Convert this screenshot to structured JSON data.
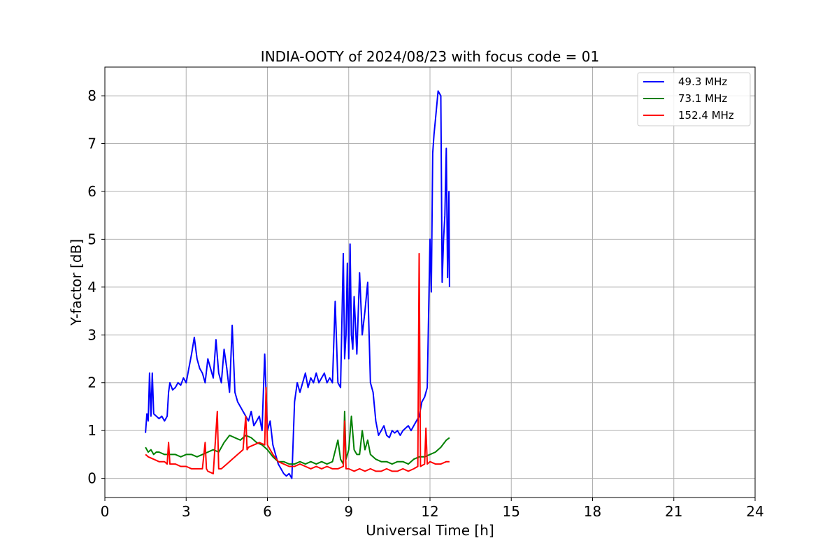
{
  "chart_data": {
    "type": "line",
    "title": "INDIA-OOTY of 2024/08/23 with focus code = 01",
    "xlabel": "Universal Time [h]",
    "ylabel": "Y-factor [dB]",
    "xlim": [
      0,
      24
    ],
    "ylim": [
      -0.4,
      8.6
    ],
    "xticks": [
      0,
      3,
      6,
      9,
      12,
      15,
      18,
      21,
      24
    ],
    "yticks": [
      0,
      1,
      2,
      3,
      4,
      5,
      6,
      7,
      8
    ],
    "grid": true,
    "legend_position": "top-right",
    "series": [
      {
        "name": " 49.3 MHz",
        "color": "#0000ff",
        "x": [
          1.5,
          1.55,
          1.6,
          1.65,
          1.7,
          1.75,
          1.8,
          1.9,
          2.0,
          2.1,
          2.2,
          2.3,
          2.35,
          2.4,
          2.5,
          2.6,
          2.7,
          2.8,
          2.9,
          3.0,
          3.1,
          3.2,
          3.3,
          3.4,
          3.5,
          3.6,
          3.7,
          3.8,
          3.9,
          4.0,
          4.1,
          4.2,
          4.3,
          4.4,
          4.5,
          4.6,
          4.7,
          4.8,
          4.9,
          5.0,
          5.1,
          5.2,
          5.3,
          5.4,
          5.5,
          5.6,
          5.7,
          5.8,
          5.9,
          6.0,
          6.1,
          6.2,
          6.3,
          6.4,
          6.5,
          6.6,
          6.7,
          6.8,
          6.9,
          7.0,
          7.1,
          7.2,
          7.3,
          7.4,
          7.5,
          7.6,
          7.7,
          7.8,
          7.9,
          8.0,
          8.1,
          8.2,
          8.3,
          8.4,
          8.5,
          8.6,
          8.7,
          8.8,
          8.85,
          8.9,
          8.95,
          9.0,
          9.05,
          9.1,
          9.15,
          9.2,
          9.3,
          9.4,
          9.5,
          9.6,
          9.7,
          9.8,
          9.9,
          10.0,
          10.1,
          10.2,
          10.3,
          10.4,
          10.5,
          10.6,
          10.7,
          10.8,
          10.9,
          11.0,
          11.1,
          11.2,
          11.3,
          11.4,
          11.5,
          11.6,
          11.7,
          11.8,
          11.9,
          12.0,
          12.05,
          12.1,
          12.15,
          12.2,
          12.3,
          12.4,
          12.45,
          12.5,
          12.55,
          12.6,
          12.65,
          12.7,
          12.72
        ],
        "y": [
          0.95,
          1.35,
          1.2,
          2.2,
          1.3,
          2.2,
          1.35,
          1.3,
          1.25,
          1.3,
          1.2,
          1.3,
          1.8,
          2.0,
          1.85,
          1.9,
          2.0,
          1.95,
          2.1,
          2.0,
          2.3,
          2.6,
          2.95,
          2.5,
          2.3,
          2.2,
          2.0,
          2.5,
          2.3,
          2.1,
          2.9,
          2.2,
          2.0,
          2.7,
          2.3,
          1.8,
          3.2,
          1.8,
          1.6,
          1.5,
          1.4,
          1.3,
          1.2,
          1.4,
          1.1,
          1.2,
          1.3,
          1.0,
          2.6,
          1.0,
          1.2,
          0.7,
          0.5,
          0.3,
          0.2,
          0.1,
          0.05,
          0.1,
          0.0,
          1.6,
          2.0,
          1.8,
          2.0,
          2.2,
          1.9,
          2.1,
          2.0,
          2.2,
          2.0,
          2.1,
          2.2,
          2.0,
          2.1,
          2.0,
          3.7,
          2.0,
          1.9,
          4.7,
          2.5,
          3.0,
          4.5,
          2.5,
          4.9,
          3.0,
          2.7,
          3.8,
          2.6,
          4.3,
          3.0,
          3.5,
          4.1,
          2.0,
          1.8,
          1.2,
          0.9,
          1.0,
          1.1,
          0.9,
          0.85,
          1.0,
          0.95,
          1.0,
          0.9,
          1.0,
          1.05,
          1.1,
          1.0,
          1.1,
          1.2,
          1.3,
          1.6,
          1.7,
          1.9,
          5.0,
          3.9,
          6.8,
          7.2,
          7.5,
          8.1,
          8.0,
          4.1,
          5.0,
          5.5,
          6.9,
          4.2,
          6.0,
          4.0
        ]
      },
      {
        "name": " 73.1 MHz",
        "color": "#008000",
        "x": [
          1.5,
          1.6,
          1.7,
          1.8,
          1.9,
          2.0,
          2.2,
          2.4,
          2.6,
          2.8,
          3.0,
          3.2,
          3.4,
          3.6,
          3.8,
          4.0,
          4.2,
          4.4,
          4.6,
          4.8,
          5.0,
          5.2,
          5.4,
          5.6,
          5.8,
          6.0,
          6.2,
          6.4,
          6.6,
          6.8,
          7.0,
          7.2,
          7.4,
          7.6,
          7.8,
          8.0,
          8.2,
          8.4,
          8.6,
          8.7,
          8.8,
          8.85,
          8.9,
          9.0,
          9.1,
          9.2,
          9.3,
          9.4,
          9.5,
          9.6,
          9.7,
          9.8,
          10.0,
          10.2,
          10.4,
          10.6,
          10.8,
          11.0,
          11.2,
          11.4,
          11.6,
          11.8,
          12.0,
          12.2,
          12.4,
          12.6,
          12.72
        ],
        "y": [
          0.65,
          0.55,
          0.6,
          0.5,
          0.55,
          0.55,
          0.5,
          0.5,
          0.5,
          0.45,
          0.5,
          0.5,
          0.45,
          0.5,
          0.55,
          0.6,
          0.55,
          0.75,
          0.9,
          0.85,
          0.8,
          0.9,
          0.85,
          0.75,
          0.7,
          0.6,
          0.45,
          0.35,
          0.35,
          0.3,
          0.3,
          0.35,
          0.3,
          0.35,
          0.3,
          0.35,
          0.3,
          0.35,
          0.8,
          0.4,
          0.3,
          1.4,
          0.4,
          0.6,
          1.3,
          0.6,
          0.5,
          0.5,
          1.0,
          0.6,
          0.8,
          0.5,
          0.4,
          0.35,
          0.35,
          0.3,
          0.35,
          0.35,
          0.3,
          0.4,
          0.45,
          0.45,
          0.5,
          0.55,
          0.65,
          0.8,
          0.85
        ]
      },
      {
        "name": "152.4 MHz",
        "color": "#ff0000",
        "x": [
          1.5,
          1.6,
          1.8,
          2.0,
          2.2,
          2.3,
          2.35,
          2.4,
          2.6,
          2.8,
          3.0,
          3.2,
          3.4,
          3.6,
          3.7,
          3.75,
          3.8,
          4.0,
          4.15,
          4.2,
          4.3,
          4.5,
          4.7,
          4.9,
          5.1,
          5.2,
          5.25,
          5.3,
          5.5,
          5.7,
          5.9,
          5.95,
          6.0,
          6.2,
          6.4,
          6.6,
          6.8,
          7.0,
          7.2,
          7.4,
          7.6,
          7.8,
          8.0,
          8.2,
          8.4,
          8.6,
          8.8,
          8.85,
          8.9,
          9.0,
          9.2,
          9.4,
          9.6,
          9.8,
          10.0,
          10.2,
          10.4,
          10.6,
          10.8,
          11.0,
          11.2,
          11.4,
          11.55,
          11.6,
          11.65,
          11.8,
          11.85,
          11.9,
          12.0,
          12.2,
          12.4,
          12.6,
          12.72
        ],
        "y": [
          0.5,
          0.45,
          0.4,
          0.35,
          0.35,
          0.3,
          0.75,
          0.3,
          0.3,
          0.25,
          0.25,
          0.2,
          0.2,
          0.2,
          0.75,
          0.2,
          0.15,
          0.1,
          1.4,
          0.2,
          0.2,
          0.3,
          0.4,
          0.5,
          0.6,
          1.3,
          0.6,
          0.65,
          0.7,
          0.75,
          0.7,
          1.9,
          0.7,
          0.5,
          0.35,
          0.3,
          0.25,
          0.25,
          0.3,
          0.25,
          0.2,
          0.25,
          0.2,
          0.25,
          0.2,
          0.2,
          0.25,
          1.2,
          0.2,
          0.2,
          0.15,
          0.2,
          0.15,
          0.2,
          0.15,
          0.15,
          0.2,
          0.15,
          0.15,
          0.2,
          0.15,
          0.2,
          0.25,
          4.7,
          0.25,
          0.3,
          1.05,
          0.3,
          0.35,
          0.3,
          0.3,
          0.35,
          0.35
        ]
      }
    ]
  }
}
